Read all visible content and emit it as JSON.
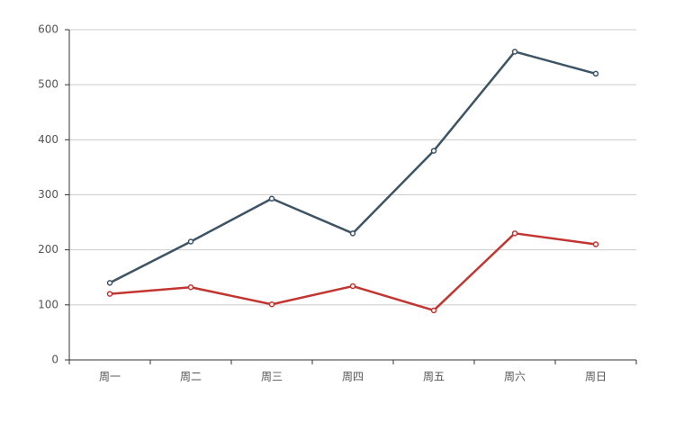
{
  "chart_data": {
    "type": "line",
    "categories": [
      "周一",
      "周二",
      "周三",
      "周四",
      "周五",
      "周六",
      "周日"
    ],
    "series": [
      {
        "color": "#3d5465",
        "values": [
          140,
          215,
          293,
          230,
          380,
          560,
          520
        ]
      },
      {
        "color": "#c23531",
        "values": [
          120,
          132,
          101,
          134,
          90,
          230,
          210
        ]
      }
    ],
    "ylim": [
      0,
      600
    ],
    "yticks": [
      0,
      100,
      200,
      300,
      400,
      500,
      600
    ],
    "grid": true
  }
}
